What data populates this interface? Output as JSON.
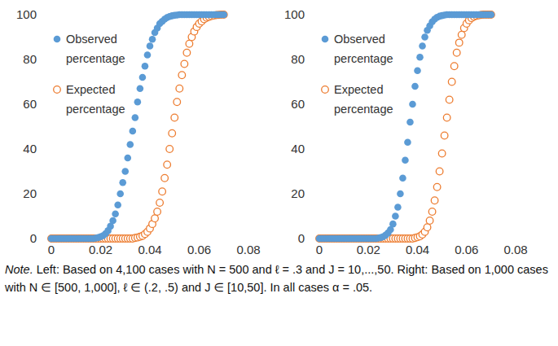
{
  "chart_data": [
    {
      "type": "scatter",
      "x": [
        0,
        0.001,
        0.002,
        0.003,
        0.004,
        0.005,
        0.006,
        0.007,
        0.008,
        0.009,
        0.01,
        0.011,
        0.012,
        0.013,
        0.014,
        0.015,
        0.016,
        0.017,
        0.018,
        0.019,
        0.02,
        0.021,
        0.022,
        0.023,
        0.024,
        0.025,
        0.026,
        0.027,
        0.028,
        0.029,
        0.03,
        0.031,
        0.032,
        0.033,
        0.034,
        0.035,
        0.036,
        0.037,
        0.038,
        0.039,
        0.04,
        0.041,
        0.042,
        0.043,
        0.044,
        0.045,
        0.046,
        0.047,
        0.048,
        0.049,
        0.05,
        0.051,
        0.052,
        0.053,
        0.054,
        0.055,
        0.056,
        0.057,
        0.058,
        0.059,
        0.06,
        0.061,
        0.062,
        0.063,
        0.064,
        0.065,
        0.066,
        0.067,
        0.068,
        0.069,
        0.07
      ],
      "series": [
        {
          "name": "Observed percentage",
          "color": "#5b9bd5",
          "marker": "circle",
          "values": [
            0,
            0,
            0,
            0,
            0,
            0,
            0,
            0,
            0,
            0,
            0,
            0,
            0,
            0,
            0,
            0,
            0,
            0,
            0.2,
            0.4,
            0.8,
            1.3,
            2.2,
            3.5,
            5.5,
            8,
            11,
            15,
            20,
            25,
            30,
            36,
            42,
            48,
            54,
            61,
            67,
            72,
            77,
            82,
            86,
            89,
            92,
            94,
            96,
            97,
            98,
            98.7,
            99.2,
            99.5,
            99.7,
            99.8,
            100,
            100,
            100,
            100,
            100,
            100,
            100,
            100,
            100,
            100,
            100,
            100,
            100,
            100,
            100,
            100,
            100,
            100,
            100
          ]
        },
        {
          "name": "Expected percentage",
          "color": "#ed7d31",
          "marker": "circle-open",
          "values": [
            0,
            0,
            0,
            0,
            0,
            0,
            0,
            0,
            0,
            0,
            0,
            0,
            0,
            0,
            0,
            0,
            0,
            0,
            0,
            0,
            0,
            0,
            0,
            0,
            0,
            0,
            0,
            0,
            0,
            0,
            0,
            0,
            0,
            0,
            0.3,
            0.5,
            0.8,
            1.2,
            2,
            3,
            4.5,
            6.5,
            9,
            12,
            16,
            21,
            27,
            33,
            40,
            47,
            54,
            61,
            67,
            73,
            78,
            83,
            87,
            90,
            92.5,
            94.5,
            96,
            97,
            98,
            98.6,
            99,
            99.4,
            99.6,
            99.8,
            99.9,
            100,
            100
          ]
        }
      ],
      "xlim": [
        0,
        0.08
      ],
      "xticks": [
        0,
        0.02,
        0.04,
        0.06,
        0.08
      ],
      "ylim": [
        0,
        100
      ],
      "yticks": [
        0,
        20,
        40,
        60,
        80,
        100
      ],
      "legend": "upper-left",
      "grid": false
    },
    {
      "type": "scatter",
      "x": [
        0,
        0.001,
        0.002,
        0.003,
        0.004,
        0.005,
        0.006,
        0.007,
        0.008,
        0.009,
        0.01,
        0.011,
        0.012,
        0.013,
        0.014,
        0.015,
        0.016,
        0.017,
        0.018,
        0.019,
        0.02,
        0.021,
        0.022,
        0.023,
        0.024,
        0.025,
        0.026,
        0.027,
        0.028,
        0.029,
        0.03,
        0.031,
        0.032,
        0.033,
        0.034,
        0.035,
        0.036,
        0.037,
        0.038,
        0.039,
        0.04,
        0.041,
        0.042,
        0.043,
        0.044,
        0.045,
        0.046,
        0.047,
        0.048,
        0.049,
        0.05,
        0.051,
        0.052,
        0.053,
        0.054,
        0.055,
        0.056,
        0.057,
        0.058,
        0.059,
        0.06,
        0.061,
        0.062,
        0.063,
        0.064,
        0.065,
        0.066,
        0.067,
        0.068,
        0.069,
        0.07
      ],
      "series": [
        {
          "name": "Observed percentage",
          "color": "#5b9bd5",
          "marker": "circle",
          "values": [
            0,
            0,
            0,
            0,
            0,
            0,
            0,
            0,
            0,
            0,
            0,
            0,
            0,
            0,
            0,
            0,
            0,
            0,
            0,
            0,
            0,
            0,
            0,
            0,
            0.2,
            0.4,
            0.8,
            1.5,
            2.5,
            4,
            6.5,
            10,
            14,
            20,
            27,
            35,
            43,
            52,
            60,
            68,
            75,
            81,
            86,
            90,
            93,
            95,
            96.8,
            98,
            98.8,
            99.3,
            99.6,
            99.8,
            100,
            100,
            100,
            100,
            100,
            100,
            100,
            100,
            100,
            100,
            100,
            100,
            100,
            100,
            100,
            100,
            100,
            100,
            100
          ]
        },
        {
          "name": "Expected percentage",
          "color": "#ed7d31",
          "marker": "circle-open",
          "values": [
            0,
            0,
            0,
            0,
            0,
            0,
            0,
            0,
            0,
            0,
            0,
            0,
            0,
            0,
            0,
            0,
            0,
            0,
            0,
            0,
            0,
            0,
            0,
            0,
            0,
            0,
            0,
            0,
            0,
            0,
            0,
            0,
            0,
            0,
            0,
            0,
            0,
            0,
            0,
            0.3,
            0.6,
            1,
            1.8,
            3,
            5,
            8,
            12,
            17,
            23,
            30,
            38,
            46,
            54,
            62,
            70,
            77,
            83,
            87.5,
            91,
            94,
            96,
            97.5,
            98.5,
            99.1,
            99.5,
            99.7,
            99.9,
            100,
            100,
            100,
            100
          ]
        }
      ],
      "xlim": [
        0,
        0.08
      ],
      "xticks": [
        0,
        0.02,
        0.04,
        0.06,
        0.08
      ],
      "ylim": [
        0,
        100
      ],
      "yticks": [
        0,
        20,
        40,
        60,
        80,
        100
      ],
      "legend": "upper-left",
      "grid": false
    }
  ],
  "note": {
    "label": "Note.",
    "text": "Left: Based on 4,100 cases with N = 500 and ℓ = .3 and J = 10,...,50. Right: Based on 1,000 cases with N ∈ [500, 1,000], ℓ ∈ (.2, .5) and J ∈ [10,50]. In all cases α = .05."
  }
}
